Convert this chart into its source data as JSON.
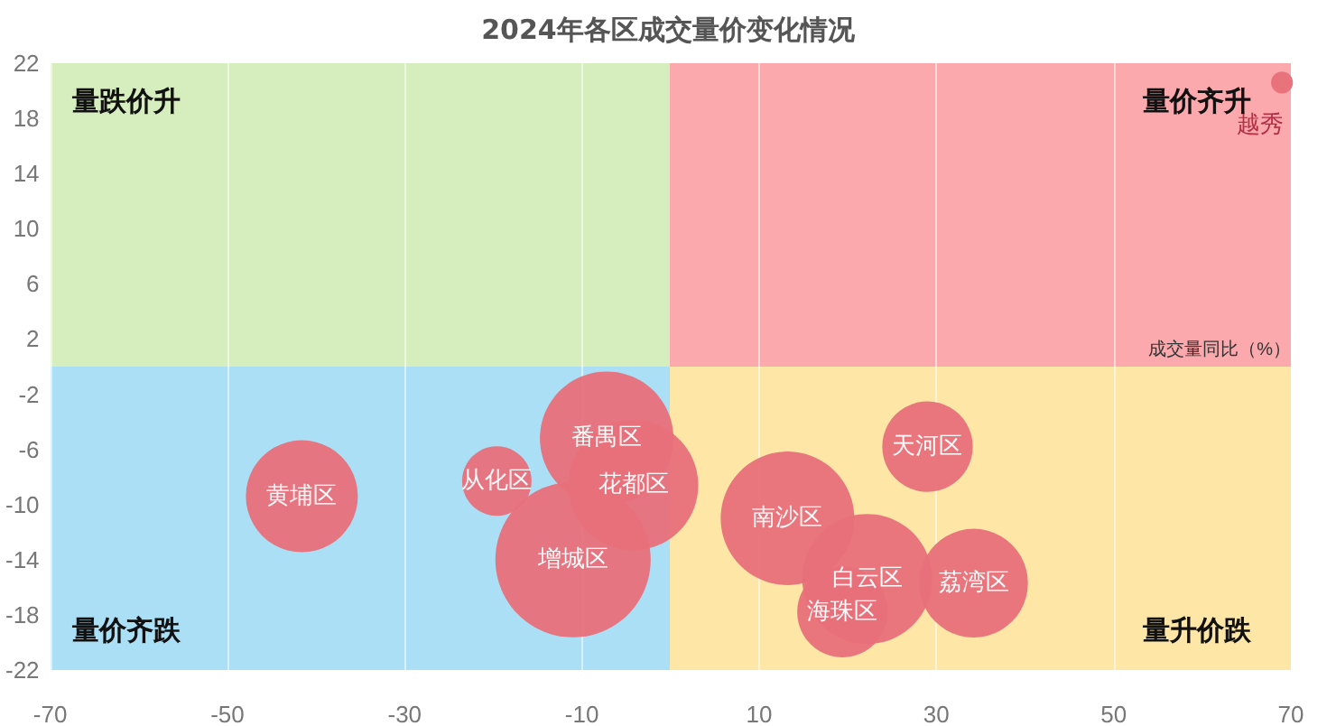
{
  "chart_data": {
    "type": "bubble",
    "title": "2024年各区成交量价变化情况",
    "xlabel": "成交量同比（%）",
    "annotations": [
      "量跌价升",
      "量价齐升",
      "量价齐跌",
      "量升价跌"
    ],
    "xlim": [
      -70,
      70
    ],
    "xticks": [
      -70,
      -50,
      -30,
      -10,
      10,
      30,
      50,
      70
    ],
    "ylim": [
      -22,
      22
    ],
    "yticks": [
      -22,
      -18,
      -14,
      -10,
      -6,
      -2,
      2,
      6,
      10,
      14,
      18,
      22
    ],
    "grid": "x",
    "legend": false,
    "series": [
      {
        "name": "黄埔区",
        "color": "#e8707a",
        "x": [
          -41.6
        ],
        "values": [
          -9.4
        ],
        "sizes": [
          0.52
        ]
      },
      {
        "name": "从化区",
        "color": "#e8707a",
        "x": [
          -19.6
        ],
        "values": [
          -8.3
        ],
        "sizes": [
          0.2
        ]
      },
      {
        "name": "番禺区",
        "color": "#e8707a",
        "x": [
          -7.2
        ],
        "values": [
          -5.2
        ],
        "sizes": [
          0.74
        ]
      },
      {
        "name": "增城区",
        "color": "#e8707a",
        "x": [
          -11
        ],
        "values": [
          -14
        ],
        "sizes": [
          1
        ]
      },
      {
        "name": "花都区",
        "color": "#e8707a",
        "x": [
          -4.2
        ],
        "values": [
          -8.6
        ],
        "sizes": [
          0.7
        ]
      },
      {
        "name": "南沙区",
        "color": "#e8707a",
        "x": [
          13.2
        ],
        "values": [
          -11
        ],
        "sizes": [
          0.74
        ]
      },
      {
        "name": "天河区",
        "color": "#e8707a",
        "x": [
          29
        ],
        "values": [
          -5.8
        ],
        "sizes": [
          0.34
        ]
      },
      {
        "name": "白云区",
        "color": "#e8707a",
        "x": [
          22.2
        ],
        "values": [
          -15.4
        ],
        "sizes": [
          0.7
        ]
      },
      {
        "name": "海珠区",
        "color": "#e8707a",
        "x": [
          19.4
        ],
        "values": [
          -17.8
        ],
        "sizes": [
          0.34
        ]
      },
      {
        "name": "荔湾区",
        "color": "#e8707a",
        "x": [
          34.2
        ],
        "values": [
          -15.7
        ],
        "sizes": [
          0.49
        ]
      },
      {
        "name": "越秀",
        "color": "#e8707a",
        "x": [
          69
        ],
        "values": [
          20.6
        ],
        "sizes": [
          0.02
        ]
      }
    ]
  }
}
